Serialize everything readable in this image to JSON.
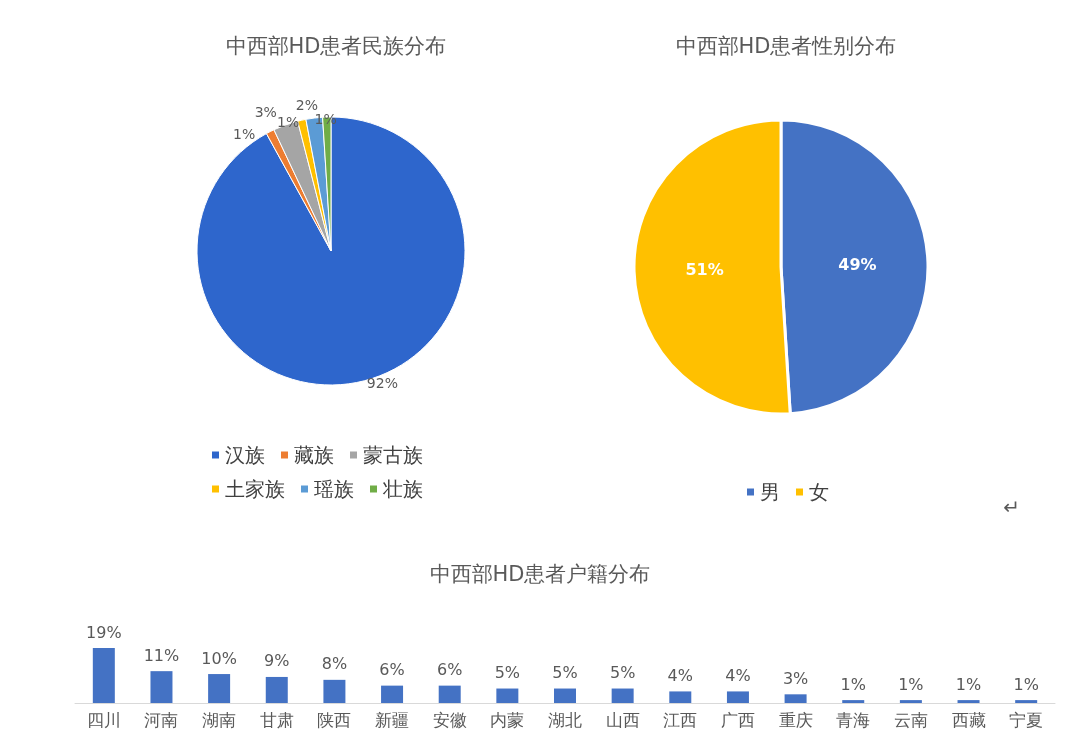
{
  "chart_data": [
    {
      "type": "pie",
      "title": "中西部HD患者民族分布",
      "categories": [
        "汉族",
        "藏族",
        "蒙古族",
        "土家族",
        "瑶族",
        "壮族"
      ],
      "values": [
        92,
        1,
        3,
        1,
        2,
        1
      ],
      "value_labels": [
        "92%",
        "1%",
        "3%",
        "1%",
        "2%",
        "1%"
      ],
      "colors": [
        "#2e66cc",
        "#ed7d31",
        "#a5a5a5",
        "#ffc000",
        "#5b9bd5",
        "#70ad47"
      ],
      "legend": "bottom"
    },
    {
      "type": "pie",
      "title": "中西部HD患者性别分布",
      "categories": [
        "男",
        "女"
      ],
      "values": [
        49,
        51
      ],
      "value_labels": [
        "49%",
        "51%"
      ],
      "colors": [
        "#4472c4",
        "#ffc000"
      ],
      "legend": "bottom",
      "annotations": [
        "↵"
      ]
    },
    {
      "type": "bar",
      "title": "中西部HD患者户籍分布",
      "categories": [
        "四川",
        "河南",
        "湖南",
        "甘肃",
        "陕西",
        "新疆",
        "安徽",
        "内蒙",
        "湖北",
        "山西",
        "江西",
        "广西",
        "重庆",
        "青海",
        "云南",
        "西藏",
        "宁夏"
      ],
      "values": [
        19,
        11,
        10,
        9,
        8,
        6,
        6,
        5,
        5,
        5,
        4,
        4,
        3,
        1,
        1,
        1,
        1
      ],
      "value_labels": [
        "19%",
        "11%",
        "10%",
        "9%",
        "8%",
        "6%",
        "6%",
        "5%",
        "5%",
        "5%",
        "4%",
        "4%",
        "3%",
        "1%",
        "1%",
        "1%",
        "1%"
      ],
      "color": "#4472c4",
      "legend": false
    }
  ]
}
